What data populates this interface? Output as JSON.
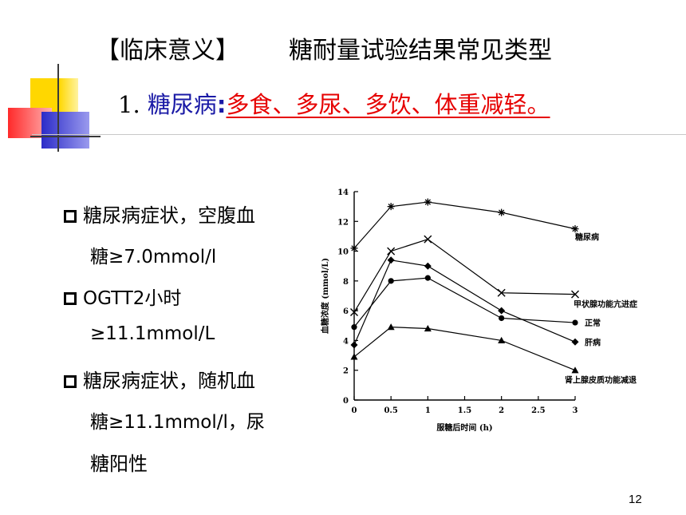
{
  "slide": {
    "title_left": "【临床意义】",
    "title_right": "糖耐量试验结果常见类型",
    "subtitle_num": "1.",
    "subtitle_key": "糖尿病",
    "subtitle_colon": ":",
    "subtitle_desc": "多食、多尿、多饮、体重减轻。",
    "page_number": "12"
  },
  "bullets": [
    {
      "lines": [
        "糖尿病症状，空腹血",
        "糖≥7.0mmol/l"
      ]
    },
    {
      "lines": [
        "OGTT2小时",
        "≥11.1mmol/L"
      ]
    },
    {
      "lines": [
        "糖尿病症状，随机血",
        "糖≥11.1mmol/l，尿",
        "糖阳性"
      ]
    }
  ],
  "colors": {
    "accent_blue": "#1a1aa6",
    "accent_red": "#e60000",
    "deco_yellow": "#ffd700",
    "deco_blue": "#3333cc",
    "deco_red": "#ff3333"
  },
  "chart_data": {
    "type": "line",
    "xlabel": "服糖后时间 (h)",
    "ylabel": "血糖浓度 (mmol/L)",
    "xlim": [
      0,
      3
    ],
    "ylim": [
      0,
      14
    ],
    "xticks": [
      "0",
      "0.5",
      "1",
      "1.5",
      "2",
      "2.5",
      "3"
    ],
    "yticks": [
      "0",
      "2",
      "4",
      "6",
      "8",
      "10",
      "12",
      "14"
    ],
    "x": [
      0,
      0.5,
      1,
      2,
      3
    ],
    "series": [
      {
        "name": "糖尿病",
        "marker": "star",
        "values": [
          10.2,
          13.0,
          13.3,
          12.6,
          11.5
        ]
      },
      {
        "name": "甲状腺功能亢进症",
        "marker": "x",
        "values": [
          5.9,
          10.0,
          10.8,
          7.2,
          7.1
        ]
      },
      {
        "name": "正常",
        "marker": "circle",
        "values": [
          4.9,
          8.0,
          8.2,
          5.5,
          5.2
        ]
      },
      {
        "name": "肝病",
        "marker": "diamond",
        "values": [
          3.7,
          9.4,
          9.0,
          6.0,
          3.9
        ]
      },
      {
        "name": "肾上腺皮质功能减退",
        "marker": "triangle",
        "values": [
          2.9,
          4.9,
          4.8,
          4.0,
          2.0
        ]
      }
    ]
  }
}
